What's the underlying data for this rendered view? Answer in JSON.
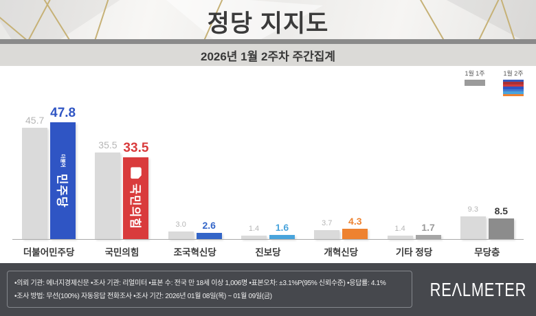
{
  "header": {
    "title": "정당 지지도",
    "subtitle": "2026년 1월 2주차 주간집계"
  },
  "legend": {
    "prev_label": "1월 1주",
    "curr_label": "1월 2주",
    "prev_color": "#9b9b9b",
    "curr_stripes": [
      "#3558bb",
      "#a93036",
      "#d23b3c",
      "#2f55c4",
      "#4179ce",
      "#4aa3dc",
      "#ee8230"
    ]
  },
  "chart_data": {
    "type": "bar",
    "title": "정당 지지도",
    "subtitle": "2026년 1월 2주차 주간집계",
    "categories": [
      "더불어민주당",
      "국민의힘",
      "조국혁신당",
      "진보당",
      "개혁신당",
      "기타 정당",
      "무당층"
    ],
    "series": [
      {
        "name": "1월 1주",
        "values": [
          45.7,
          35.5,
          3.0,
          1.4,
          3.7,
          1.4,
          9.3
        ]
      },
      {
        "name": "1월 2주",
        "values": [
          47.8,
          33.5,
          2.6,
          1.6,
          4.3,
          1.7,
          8.5
        ]
      }
    ],
    "unit": "%",
    "ylim": [
      0,
      55
    ],
    "grid": false,
    "legend_position": "top-right",
    "prev_bar_color": "#dadada",
    "prev_value_color": "#b5b5b5",
    "bar_colors": [
      "#2f55c4",
      "#d93b3c",
      "#3365c8",
      "#49a4dc",
      "#ee8230",
      "#a5a5a5",
      "#8c8c8c"
    ],
    "value_colors": [
      "#2f55c4",
      "#d93b3c",
      "#3365c8",
      "#49a4dc",
      "#ee8230",
      "#9a9a9a",
      "#3a3a3a"
    ]
  },
  "bar_logos": {
    "dp_small": "더불어",
    "dp_main": "민주당",
    "ppp_main": "국민의힘"
  },
  "footer": {
    "line1": "•의뢰 기관: 에너지경제신문  •조사 기관: 리얼미터 •표본 수: 전국 만 18세 이상 1,006명 •표본오차: ±3.1%P(95% 신뢰수준) •응답률: 4.1%",
    "line2": "•조사 방법: 무선(100%) 자동응답 전화조사 •조사 기간: 2026년 01월 08일(목) ~ 01월 09일(금)",
    "logo": "REΛLMETER"
  }
}
